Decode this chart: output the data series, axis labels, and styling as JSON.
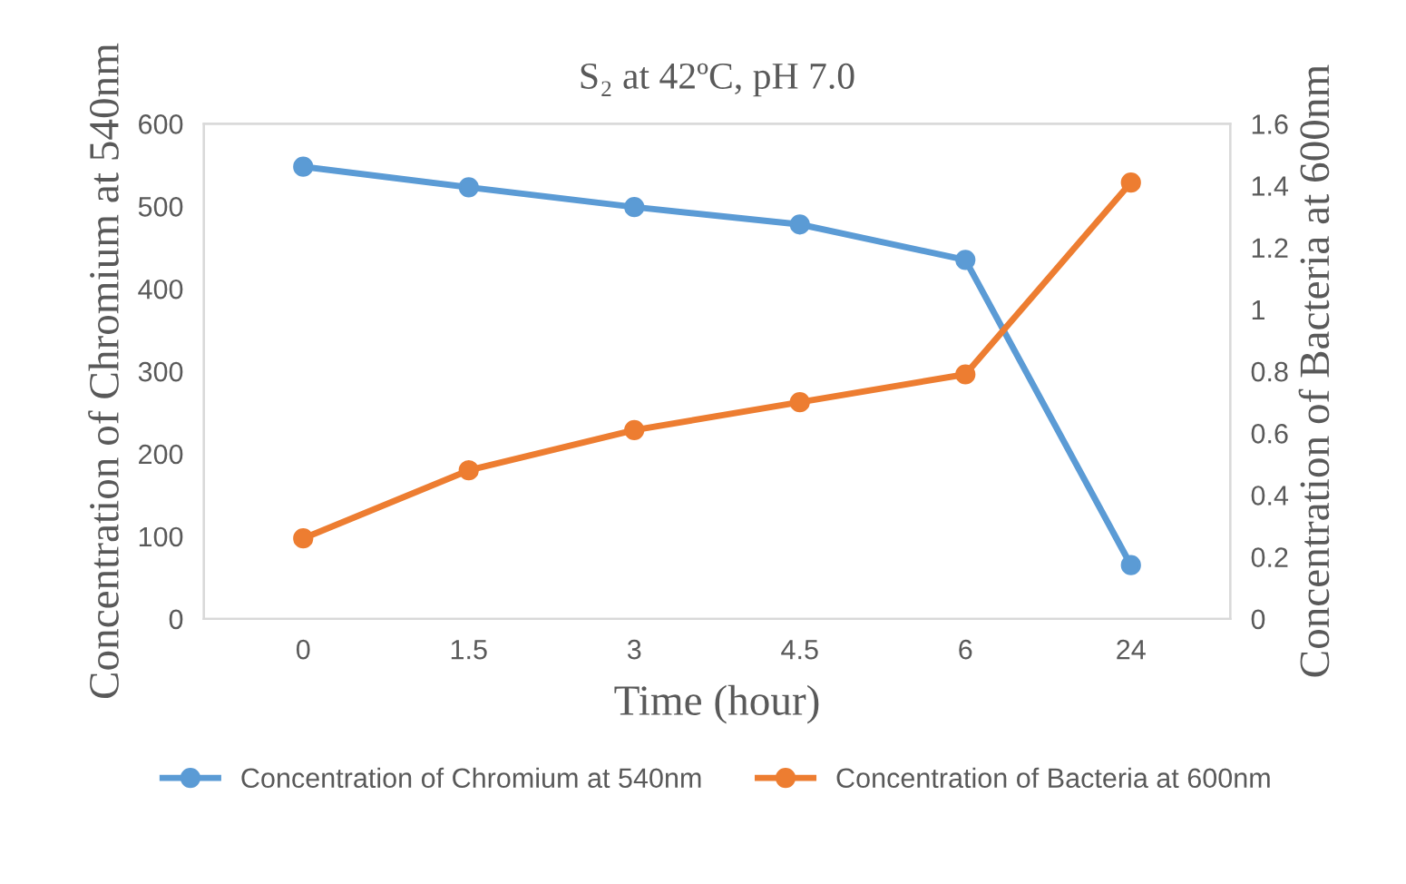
{
  "chart_data": {
    "type": "line",
    "title": "S₂ at 42ºC, pH 7.0",
    "xlabel": "Time (hour)",
    "ylabel": "Concentration of Chromium at 540nm",
    "y2label": "Concentration of Bacteria at 600nm",
    "categories": [
      "0",
      "1.5",
      "3",
      "4.5",
      "6",
      "24"
    ],
    "series": [
      {
        "name": "Concentration of Chromium at 540nm",
        "color": "#5b9bd5",
        "values": [
          548,
          523,
          499,
          478,
          435,
          65
        ]
      },
      {
        "name": "Concentration of Bacteria at 600nm",
        "color": "#ed7d31",
        "axis": "y2",
        "values": [
          0.26,
          0.48,
          0.61,
          0.7,
          0.79,
          1.41
        ]
      }
    ],
    "ylim": [
      0,
      600
    ],
    "yticks": [
      0,
      100,
      200,
      300,
      400,
      500,
      600
    ],
    "y2lim": [
      0,
      1.6
    ],
    "y2ticks": [
      0,
      0.2,
      0.4,
      0.6,
      0.8,
      1,
      1.2,
      1.4,
      1.6
    ],
    "marker": "circle",
    "line_style": "solid",
    "grid": false,
    "legend": "bottom"
  }
}
